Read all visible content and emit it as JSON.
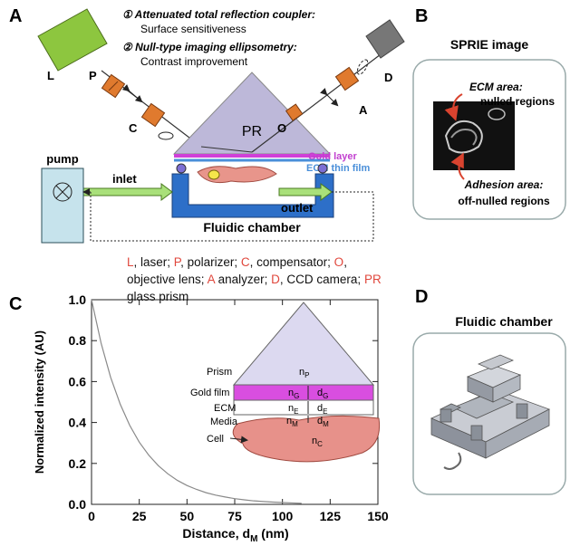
{
  "panel_a": {
    "letter": "A",
    "notes": [
      {
        "title": "① Attenuated total reflection coupler:",
        "text": "Surface sensitiveness"
      },
      {
        "title": "② Null-type imaging ellipsometry:",
        "text": "Contrast improvement"
      }
    ],
    "labels": {
      "laser": "L",
      "polarizer": "P",
      "compensator": "C",
      "prism": "PR",
      "objective": "O",
      "analyzer": "A",
      "camera": "D"
    },
    "gold_layer": "Gold layer",
    "ecm_film": "ECM thin film",
    "pump": "pump",
    "inlet": "inlet",
    "outlet": "outlet",
    "chamber": "Fluidic chamber",
    "legend": [
      {
        "key": "L",
        "desc": ", laser;"
      },
      {
        "key": "P",
        "desc": ", polarizer;"
      },
      {
        "key": "C",
        "desc": ", compensator;"
      },
      {
        "key": "O",
        "desc": ", objective lens;"
      },
      {
        "key": "A",
        "desc": " analyzer;"
      },
      {
        "key": "D",
        "desc": ", CCD camera;"
      },
      {
        "key": "PR",
        "desc": " glass prism"
      }
    ]
  },
  "panel_b": {
    "letter": "B",
    "title": "SPRIE image",
    "ecm_title": "ECM area:",
    "ecm_text": "nulled regions",
    "adhesion_title": "Adhesion area:",
    "adhesion_text": "off-nulled regions"
  },
  "panel_c": {
    "letter": "C",
    "inset": {
      "prism": {
        "label": "Prism",
        "n": "n",
        "n_sub": "P"
      },
      "gold": {
        "label": "Gold film",
        "n": "n",
        "n_sub": "G",
        "d": "d",
        "d_sub": "G"
      },
      "ecm": {
        "label": "ECM",
        "n": "n",
        "n_sub": "E",
        "d": "d",
        "d_sub": "E"
      },
      "media": {
        "label": "Media",
        "n": "n",
        "n_sub": "M",
        "d": "d",
        "d_sub": "M"
      },
      "cell": {
        "label": "Cell",
        "n": "n",
        "n_sub": "C"
      }
    }
  },
  "panel_d": {
    "letter": "D",
    "title": "Fluidic chamber"
  },
  "chart_data": {
    "type": "line",
    "y_label": "Normalized intensity (AU)",
    "x_label": "Distance, d",
    "x_label_sub": "M",
    "x_label_unit": "(nm)",
    "x": [
      0,
      5,
      10,
      15,
      20,
      25,
      30,
      35,
      40,
      45,
      50,
      55,
      60,
      65,
      70,
      75,
      80,
      85,
      90,
      95,
      100,
      105,
      110
    ],
    "values": [
      1.0,
      0.788,
      0.621,
      0.49,
      0.386,
      0.304,
      0.24,
      0.189,
      0.149,
      0.117,
      0.092,
      0.073,
      0.057,
      0.045,
      0.036,
      0.028,
      0.022,
      0.017,
      0.014,
      0.011,
      0.009,
      0.007,
      0.005
    ],
    "color": "#8a8a8a",
    "xlim": [
      0,
      150
    ],
    "ylim": [
      0,
      1
    ],
    "xticks": [
      0,
      25,
      50,
      75,
      100,
      125,
      150
    ],
    "yticks": [
      {
        "value": 0,
        "label": "0.0"
      },
      0.2,
      0.4,
      0.6,
      0.8,
      {
        "value": 1,
        "label": "1.0"
      }
    ]
  }
}
